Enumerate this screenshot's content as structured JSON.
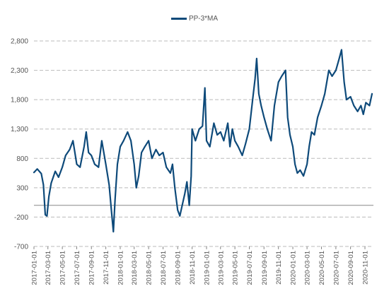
{
  "chart_data": {
    "type": "line",
    "title": "",
    "xlabel": "",
    "ylabel": "",
    "legend_position": "top-center",
    "ylim": [
      -700,
      2800
    ],
    "yticks": [
      -700,
      -200,
      300,
      800,
      1300,
      1800,
      2300,
      2800
    ],
    "ytick_labels": [
      "-700",
      "-200",
      "300",
      "800",
      "1,300",
      "1,800",
      "2,300",
      "2,800"
    ],
    "xtick_labels": [
      "2017-01-01",
      "2017-03-01",
      "2017-05-01",
      "2017-07-01",
      "2017-09-01",
      "2017-11-01",
      "2018-01-01",
      "2018-03-01",
      "2018-05-01",
      "2018-07-01",
      "2018-09-01",
      "2018-11-01",
      "2019-01-01",
      "2019-03-01",
      "2019-05-01",
      "2019-07-01",
      "2019-09-01",
      "2019-11-01",
      "2020-01-01",
      "2020-03-01",
      "2020-05-01",
      "2020-07-01",
      "2020-09-01",
      "2020-11-01"
    ],
    "grid": "horizontal dashed",
    "colors": {
      "series": "#0e4a7a",
      "grid": "#bbbbbb",
      "zero_line": "#888888"
    },
    "series": [
      {
        "name": "PP-3*MA",
        "points": [
          [
            "2017-01-01",
            560
          ],
          [
            "2017-01-15",
            620
          ],
          [
            "2017-02-01",
            540
          ],
          [
            "2017-02-10",
            350
          ],
          [
            "2017-02-18",
            -160
          ],
          [
            "2017-02-25",
            -180
          ],
          [
            "2017-03-05",
            150
          ],
          [
            "2017-03-15",
            380
          ],
          [
            "2017-04-01",
            580
          ],
          [
            "2017-04-15",
            480
          ],
          [
            "2017-05-01",
            650
          ],
          [
            "2017-05-15",
            850
          ],
          [
            "2017-06-01",
            950
          ],
          [
            "2017-06-15",
            1100
          ],
          [
            "2017-07-01",
            700
          ],
          [
            "2017-07-15",
            650
          ],
          [
            "2017-08-01",
            1000
          ],
          [
            "2017-08-10",
            1250
          ],
          [
            "2017-08-20",
            900
          ],
          [
            "2017-09-01",
            850
          ],
          [
            "2017-09-15",
            700
          ],
          [
            "2017-10-01",
            650
          ],
          [
            "2017-10-15",
            1100
          ],
          [
            "2017-11-01",
            700
          ],
          [
            "2017-11-15",
            350
          ],
          [
            "2017-11-25",
            -100
          ],
          [
            "2017-12-03",
            -450
          ],
          [
            "2017-12-10",
            100
          ],
          [
            "2017-12-20",
            700
          ],
          [
            "2018-01-01",
            1000
          ],
          [
            "2018-01-15",
            1100
          ],
          [
            "2018-02-01",
            1250
          ],
          [
            "2018-02-15",
            1100
          ],
          [
            "2018-03-01",
            700
          ],
          [
            "2018-03-10",
            300
          ],
          [
            "2018-03-20",
            500
          ],
          [
            "2018-04-01",
            900
          ],
          [
            "2018-04-15",
            1000
          ],
          [
            "2018-05-01",
            1100
          ],
          [
            "2018-05-15",
            800
          ],
          [
            "2018-06-01",
            950
          ],
          [
            "2018-06-15",
            850
          ],
          [
            "2018-07-01",
            900
          ],
          [
            "2018-07-15",
            650
          ],
          [
            "2018-08-01",
            550
          ],
          [
            "2018-08-10",
            700
          ],
          [
            "2018-08-20",
            300
          ],
          [
            "2018-09-01",
            -80
          ],
          [
            "2018-09-10",
            -180
          ],
          [
            "2018-09-20",
            0
          ],
          [
            "2018-10-01",
            200
          ],
          [
            "2018-10-10",
            400
          ],
          [
            "2018-10-20",
            0
          ],
          [
            "2018-10-28",
            500
          ],
          [
            "2018-11-01",
            1300
          ],
          [
            "2018-11-15",
            1100
          ],
          [
            "2018-12-01",
            1300
          ],
          [
            "2018-12-15",
            1350
          ],
          [
            "2018-12-25",
            2000
          ],
          [
            "2019-01-01",
            1100
          ],
          [
            "2019-01-15",
            1000
          ],
          [
            "2019-02-01",
            1400
          ],
          [
            "2019-02-15",
            1200
          ],
          [
            "2019-03-01",
            1250
          ],
          [
            "2019-03-15",
            1100
          ],
          [
            "2019-04-01",
            1400
          ],
          [
            "2019-04-10",
            1000
          ],
          [
            "2019-04-20",
            1300
          ],
          [
            "2019-05-01",
            1100
          ],
          [
            "2019-05-15",
            1000
          ],
          [
            "2019-06-01",
            850
          ],
          [
            "2019-06-15",
            1050
          ],
          [
            "2019-07-01",
            1300
          ],
          [
            "2019-07-15",
            1800
          ],
          [
            "2019-07-25",
            2150
          ],
          [
            "2019-08-01",
            2500
          ],
          [
            "2019-08-10",
            1900
          ],
          [
            "2019-08-20",
            1700
          ],
          [
            "2019-09-01",
            1500
          ],
          [
            "2019-09-15",
            1300
          ],
          [
            "2019-10-01",
            1100
          ],
          [
            "2019-10-15",
            1700
          ],
          [
            "2019-11-01",
            2100
          ],
          [
            "2019-11-15",
            2200
          ],
          [
            "2019-12-01",
            2300
          ],
          [
            "2019-12-10",
            1500
          ],
          [
            "2019-12-20",
            1200
          ],
          [
            "2020-01-01",
            1000
          ],
          [
            "2020-01-10",
            700
          ],
          [
            "2020-01-20",
            550
          ],
          [
            "2020-02-01",
            600
          ],
          [
            "2020-02-15",
            500
          ],
          [
            "2020-03-01",
            700
          ],
          [
            "2020-03-10",
            1000
          ],
          [
            "2020-03-20",
            1250
          ],
          [
            "2020-04-01",
            1200
          ],
          [
            "2020-04-15",
            1500
          ],
          [
            "2020-05-01",
            1700
          ],
          [
            "2020-05-15",
            1900
          ],
          [
            "2020-06-01",
            2300
          ],
          [
            "2020-06-15",
            2200
          ],
          [
            "2020-07-01",
            2300
          ],
          [
            "2020-07-15",
            2500
          ],
          [
            "2020-07-25",
            2650
          ],
          [
            "2020-08-05",
            2100
          ],
          [
            "2020-08-15",
            1800
          ],
          [
            "2020-09-01",
            1850
          ],
          [
            "2020-09-15",
            1700
          ],
          [
            "2020-10-01",
            1600
          ],
          [
            "2020-10-15",
            1700
          ],
          [
            "2020-10-25",
            1550
          ],
          [
            "2020-11-05",
            1750
          ],
          [
            "2020-11-20",
            1700
          ],
          [
            "2020-12-01",
            1900
          ]
        ]
      }
    ]
  }
}
